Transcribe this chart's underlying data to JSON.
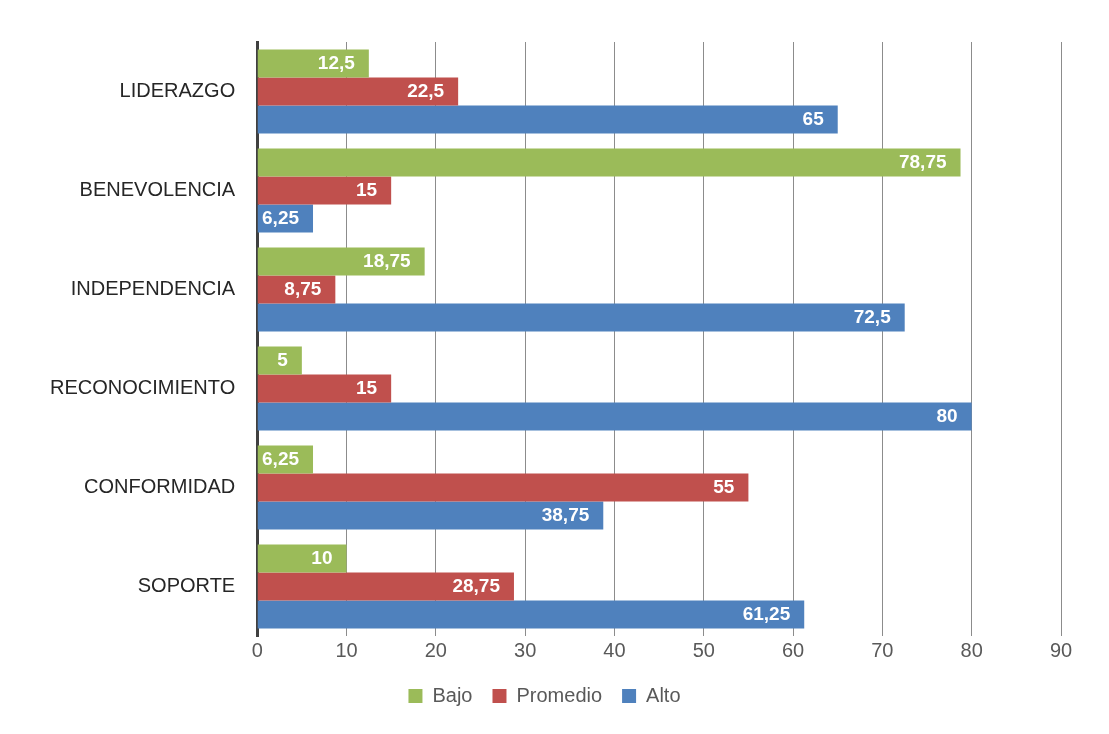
{
  "chart_data": {
    "type": "bar",
    "orientation": "horizontal",
    "categories": [
      "LIDERAZGO",
      "BENEVOLENCIA",
      "INDEPENDENCIA",
      "RECONOCIMIENTO",
      "CONFORMIDAD",
      "SOPORTE"
    ],
    "series": [
      {
        "name": "Bajo",
        "color": "#9bbb59",
        "values": [
          12.5,
          78.75,
          18.75,
          5,
          6.25,
          10
        ],
        "value_labels": [
          "12,5",
          "78,75",
          "18,75",
          "5",
          "6,25",
          "10"
        ]
      },
      {
        "name": "Promedio",
        "color": "#c0504d",
        "values": [
          22.5,
          15,
          8.75,
          15,
          55,
          28.75
        ],
        "value_labels": [
          "22,5",
          "15",
          "8,75",
          "15",
          "55",
          "28,75"
        ]
      },
      {
        "name": "Alto",
        "color": "#4f81bd",
        "values": [
          65,
          6.25,
          72.5,
          80,
          38.75,
          61.25
        ],
        "value_labels": [
          "65",
          "6,25",
          "72,5",
          "80",
          "38,75",
          "61,25"
        ]
      }
    ],
    "xlim": [
      0,
      90
    ],
    "xticks": [
      0,
      10,
      20,
      30,
      40,
      50,
      60,
      70,
      80,
      90
    ],
    "grid": "x",
    "legend": "bottom"
  }
}
